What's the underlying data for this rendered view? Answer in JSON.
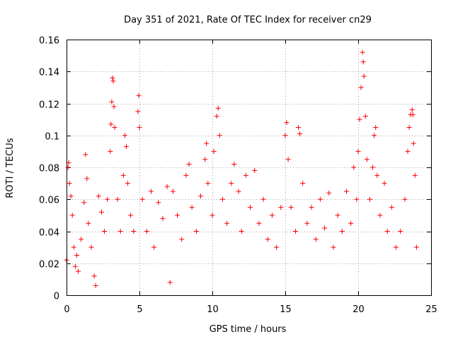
{
  "chart_data": {
    "type": "scatter",
    "title": "Day 351 of 2021, Rate Of TEC Index for receiver cn29",
    "xlabel": "GPS time / hours",
    "ylabel": "ROTI / TECUs",
    "xlim": [
      0,
      25
    ],
    "ylim": [
      0,
      0.16
    ],
    "xticks": [
      "0",
      "5",
      "10",
      "15",
      "20",
      "25"
    ],
    "yticks": [
      "0",
      "0.02",
      "0.04",
      "0.06",
      "0.08",
      "0.1",
      "0.12",
      "0.14",
      "0.16"
    ],
    "grid": true,
    "marker": "+",
    "color": "#ff0000",
    "series": [
      {
        "points": [
          [
            0.0,
            0.022
          ],
          [
            0.1,
            0.08
          ],
          [
            0.15,
            0.083
          ],
          [
            0.2,
            0.07
          ],
          [
            0.3,
            0.062
          ],
          [
            0.4,
            0.05
          ],
          [
            0.5,
            0.03
          ],
          [
            0.6,
            0.018
          ],
          [
            0.7,
            0.025
          ],
          [
            0.8,
            0.015
          ],
          [
            1.0,
            0.035
          ],
          [
            1.2,
            0.058
          ],
          [
            1.3,
            0.088
          ],
          [
            1.4,
            0.073
          ],
          [
            1.5,
            0.045
          ],
          [
            1.7,
            0.03
          ],
          [
            1.9,
            0.012
          ],
          [
            2.0,
            0.006
          ],
          [
            2.2,
            0.062
          ],
          [
            2.4,
            0.052
          ],
          [
            2.6,
            0.04
          ],
          [
            2.8,
            0.06
          ],
          [
            3.0,
            0.09
          ],
          [
            3.05,
            0.107
          ],
          [
            3.1,
            0.121
          ],
          [
            3.15,
            0.136
          ],
          [
            3.2,
            0.134
          ],
          [
            3.25,
            0.118
          ],
          [
            3.3,
            0.105
          ],
          [
            3.5,
            0.06
          ],
          [
            3.7,
            0.04
          ],
          [
            3.9,
            0.075
          ],
          [
            4.0,
            0.1
          ],
          [
            4.1,
            0.093
          ],
          [
            4.2,
            0.07
          ],
          [
            4.4,
            0.05
          ],
          [
            4.6,
            0.04
          ],
          [
            4.9,
            0.115
          ],
          [
            4.95,
            0.125
          ],
          [
            5.0,
            0.105
          ],
          [
            5.2,
            0.06
          ],
          [
            5.5,
            0.04
          ],
          [
            5.8,
            0.065
          ],
          [
            6.0,
            0.03
          ],
          [
            6.3,
            0.058
          ],
          [
            6.6,
            0.048
          ],
          [
            6.9,
            0.068
          ],
          [
            7.1,
            0.008
          ],
          [
            7.3,
            0.065
          ],
          [
            7.6,
            0.05
          ],
          [
            7.9,
            0.035
          ],
          [
            8.2,
            0.075
          ],
          [
            8.4,
            0.082
          ],
          [
            8.6,
            0.055
          ],
          [
            8.9,
            0.04
          ],
          [
            9.2,
            0.062
          ],
          [
            9.5,
            0.085
          ],
          [
            9.6,
            0.095
          ],
          [
            9.7,
            0.07
          ],
          [
            10.0,
            0.05
          ],
          [
            10.1,
            0.09
          ],
          [
            10.3,
            0.112
          ],
          [
            10.4,
            0.117
          ],
          [
            10.5,
            0.1
          ],
          [
            10.7,
            0.06
          ],
          [
            11.0,
            0.045
          ],
          [
            11.3,
            0.07
          ],
          [
            11.5,
            0.082
          ],
          [
            11.8,
            0.065
          ],
          [
            12.0,
            0.04
          ],
          [
            12.3,
            0.075
          ],
          [
            12.6,
            0.055
          ],
          [
            12.9,
            0.078
          ],
          [
            13.2,
            0.045
          ],
          [
            13.5,
            0.06
          ],
          [
            13.8,
            0.035
          ],
          [
            14.1,
            0.05
          ],
          [
            14.4,
            0.03
          ],
          [
            14.7,
            0.055
          ],
          [
            15.0,
            0.1
          ],
          [
            15.1,
            0.108
          ],
          [
            15.2,
            0.085
          ],
          [
            15.4,
            0.055
          ],
          [
            15.7,
            0.04
          ],
          [
            15.9,
            0.105
          ],
          [
            16.0,
            0.101
          ],
          [
            16.2,
            0.07
          ],
          [
            16.5,
            0.045
          ],
          [
            16.8,
            0.055
          ],
          [
            17.1,
            0.035
          ],
          [
            17.4,
            0.06
          ],
          [
            17.7,
            0.042
          ],
          [
            18.0,
            0.064
          ],
          [
            18.3,
            0.03
          ],
          [
            18.6,
            0.05
          ],
          [
            18.9,
            0.04
          ],
          [
            19.2,
            0.065
          ],
          [
            19.5,
            0.045
          ],
          [
            19.7,
            0.08
          ],
          [
            19.9,
            0.06
          ],
          [
            20.0,
            0.09
          ],
          [
            20.1,
            0.11
          ],
          [
            20.2,
            0.13
          ],
          [
            20.3,
            0.152
          ],
          [
            20.35,
            0.146
          ],
          [
            20.4,
            0.137
          ],
          [
            20.5,
            0.112
          ],
          [
            20.6,
            0.085
          ],
          [
            20.8,
            0.06
          ],
          [
            21.0,
            0.08
          ],
          [
            21.1,
            0.1
          ],
          [
            21.2,
            0.105
          ],
          [
            21.3,
            0.075
          ],
          [
            21.5,
            0.05
          ],
          [
            21.8,
            0.07
          ],
          [
            22.0,
            0.04
          ],
          [
            22.3,
            0.055
          ],
          [
            22.6,
            0.03
          ],
          [
            22.9,
            0.04
          ],
          [
            23.2,
            0.06
          ],
          [
            23.4,
            0.09
          ],
          [
            23.5,
            0.105
          ],
          [
            23.6,
            0.113
          ],
          [
            23.7,
            0.116
          ],
          [
            23.75,
            0.113
          ],
          [
            23.8,
            0.095
          ],
          [
            23.9,
            0.075
          ],
          [
            24.0,
            0.03
          ]
        ]
      }
    ]
  }
}
